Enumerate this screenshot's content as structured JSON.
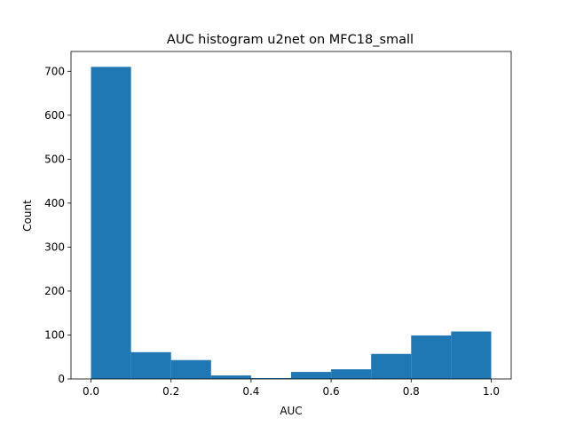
{
  "chart_data": {
    "type": "bar",
    "title": "AUC histogram u2net on MFC18_small",
    "xlabel": "AUC",
    "ylabel": "Count",
    "bins": [
      {
        "start": 0.0,
        "end": 0.1,
        "count": 710
      },
      {
        "start": 0.1,
        "end": 0.2,
        "count": 61
      },
      {
        "start": 0.2,
        "end": 0.3,
        "count": 43
      },
      {
        "start": 0.3,
        "end": 0.4,
        "count": 8
      },
      {
        "start": 0.4,
        "end": 0.5,
        "count": 2
      },
      {
        "start": 0.5,
        "end": 0.6,
        "count": 16
      },
      {
        "start": 0.6,
        "end": 0.7,
        "count": 22
      },
      {
        "start": 0.7,
        "end": 0.8,
        "count": 57
      },
      {
        "start": 0.8,
        "end": 0.9,
        "count": 99
      },
      {
        "start": 0.9,
        "end": 1.0,
        "count": 108
      }
    ],
    "xlim": [
      -0.05,
      1.05
    ],
    "ylim": [
      0,
      745
    ],
    "xticks": [
      0.0,
      0.2,
      0.4,
      0.6,
      0.8,
      1.0
    ],
    "xtick_labels": [
      "0.0",
      "0.2",
      "0.4",
      "0.6",
      "0.8",
      "1.0"
    ],
    "yticks": [
      0,
      100,
      200,
      300,
      400,
      500,
      600,
      700
    ],
    "ytick_labels": [
      "0",
      "100",
      "200",
      "300",
      "400",
      "500",
      "600",
      "700"
    ],
    "bar_color": "#1f77b4",
    "grid": false,
    "legend": "none"
  }
}
